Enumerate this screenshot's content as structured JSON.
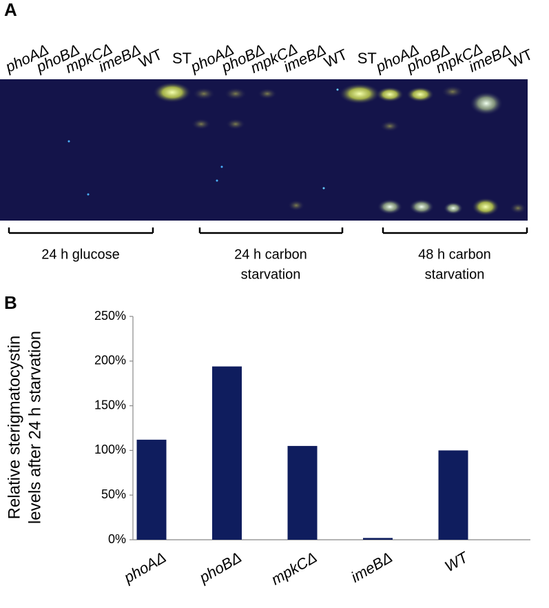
{
  "panel_a": {
    "label": "A",
    "lanes": [
      "phoAΔ",
      "phoBΔ",
      "mpkCΔ",
      "imeBΔ",
      "WT",
      "ST",
      "phoAΔ",
      "phoBΔ",
      "mpkCΔ",
      "imeBΔ",
      "WT",
      "ST",
      "phoAΔ",
      "phoBΔ",
      "mpkCΔ",
      "imeBΔ",
      "WT"
    ],
    "groups": [
      [
        "24 h glucose"
      ],
      [
        "24 h carbon",
        "starvation"
      ],
      [
        "48 h carbon",
        "starvation"
      ]
    ]
  },
  "chart_data": {
    "type": "bar",
    "panel_label": "B",
    "y_label": [
      "Relative sterigmatocystin",
      "levels after 24 h starvation"
    ],
    "categories": [
      "phoAΔ",
      "phoBΔ",
      "mpkCΔ",
      "imeBΔ",
      "WT"
    ],
    "values": [
      112,
      194,
      105,
      2,
      100
    ],
    "color": "#0f1d5e",
    "ylim": [
      0,
      250
    ],
    "yticks": [
      {
        "value": 0,
        "label": "0%"
      },
      {
        "value": 50,
        "label": "50%"
      },
      {
        "value": 100,
        "label": "100%"
      },
      {
        "value": 150,
        "label": "150%"
      },
      {
        "value": 200,
        "label": "200%"
      },
      {
        "value": 250,
        "label": "250%"
      }
    ]
  }
}
